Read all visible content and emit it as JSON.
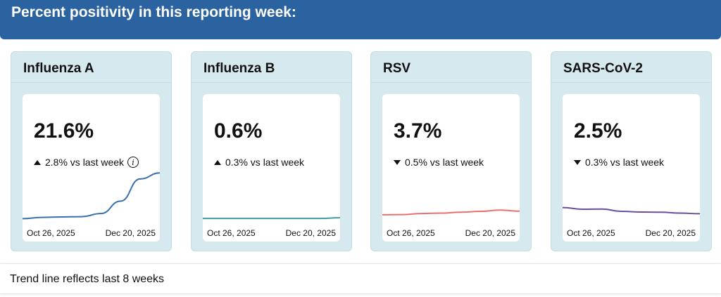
{
  "header": {
    "title": "Percent positivity in this reporting week:"
  },
  "cards": [
    {
      "title": "Influenza A",
      "value": "21.6%",
      "direction": "up",
      "change": "2.8% vs last week",
      "info": true,
      "start_date": "Oct 26, 2025",
      "end_date": "Dec 20, 2025",
      "color": "#3a6fb0",
      "trend": [
        0.2,
        0.8,
        1.0,
        1.1,
        2.6,
        8.4,
        18.8,
        21.6
      ]
    },
    {
      "title": "Influenza B",
      "value": "0.6%",
      "direction": "up",
      "change": "0.3% vs last week",
      "info": false,
      "start_date": "Oct 26, 2025",
      "end_date": "Dec 20, 2025",
      "color": "#3d9aa3",
      "trend": [
        0.3,
        0.3,
        0.3,
        0.3,
        0.3,
        0.3,
        0.3,
        0.6
      ]
    },
    {
      "title": "RSV",
      "value": "3.7%",
      "direction": "down",
      "change": "0.5% vs last week",
      "info": false,
      "start_date": "Oct 26, 2025",
      "end_date": "Dec 20, 2025",
      "color": "#e87070",
      "trend": [
        2.0,
        2.1,
        2.6,
        2.8,
        3.2,
        3.6,
        4.2,
        3.7
      ]
    },
    {
      "title": "SARS-CoV-2",
      "value": "2.5%",
      "direction": "down",
      "change": "0.3% vs last week",
      "info": false,
      "start_date": "Oct 26, 2025",
      "end_date": "Dec 20, 2025",
      "color": "#6a4fa0",
      "trend": [
        5.4,
        4.6,
        4.7,
        3.6,
        3.3,
        3.2,
        2.8,
        2.5
      ]
    }
  ],
  "footer": {
    "text": "Trend line reflects last 8 weeks"
  }
}
